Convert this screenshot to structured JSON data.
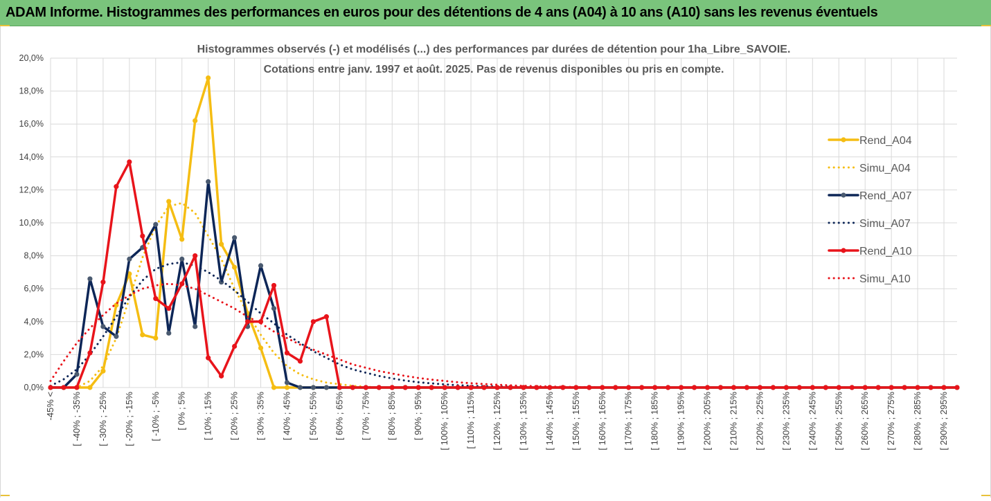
{
  "banner": {
    "title": "ADAM Informe. Histogrammes des performances en euros pour des détentions de 4 ans (A04) à 10 ans (A10) sans les revenus éventuels"
  },
  "chart_data": {
    "type": "line",
    "title_line1": "Histogrammes observés (-) et modélisés (...) des performances par durées de détention pour 1ha_Libre_SAVOIE.",
    "title_line2": "Cotations entre janv. 1997 et août. 2025. Pas de revenus disponibles ou pris en compte.",
    "xlabel": "",
    "ylabel": "",
    "ylim": [
      0,
      20
    ],
    "y_ticks": [
      "0,0%",
      "2,0%",
      "4,0%",
      "6,0%",
      "8,0%",
      "10,0%",
      "12,0%",
      "14,0%",
      "16,0%",
      "18,0%",
      "20,0%"
    ],
    "grid": true,
    "legend_position": "right",
    "x_labels_visible": [
      "-45% <",
      "[ -40% ; -35%",
      "[ -30% ; -25%",
      "[ -20% ; -15%",
      "[ -10% ; -5%",
      "[ 0% ; 5%",
      "[ 10% ; 15%",
      "[ 20% ; 25%",
      "[ 30% ; 35%",
      "[ 40% ; 45%",
      "[ 50% ; 55%",
      "[ 60% ; 65%",
      "[ 70% ; 75%",
      "[ 80% ; 85%",
      "[ 90% ; 95%",
      "[ 100% ; 105%",
      "[ 110% ; 115%",
      "[ 120% ; 125%",
      "[ 130% ; 135%",
      "[ 140% ; 145%",
      "[ 150% ; 155%",
      "[ 160% ; 165%",
      "[ 170% ; 175%",
      "[ 180% ; 185%",
      "[ 190% ; 195%",
      "[ 200% ; 205%",
      "[ 210% ; 215%",
      "[ 220% ; 225%",
      "[ 230% ; 235%",
      "[ 240% ; 245%",
      "[ 250% ; 255%",
      "[ 260% ; 265%",
      "[ 270% ; 275%",
      "[ 280% ; 285%",
      "[ 290% ; 295%"
    ],
    "x_label_step": 2,
    "bin_count": 70,
    "series": [
      {
        "name": "Rend_A04",
        "color": "#f5bd13",
        "style": "solid",
        "marker": true,
        "values": [
          0,
          0,
          0,
          0,
          1.0,
          5.0,
          6.9,
          3.2,
          3.0,
          11.3,
          9.0,
          16.2,
          18.8,
          8.7,
          7.3,
          4.5,
          2.4,
          0,
          0,
          0,
          0,
          0,
          0,
          0,
          0,
          0,
          0,
          0,
          0,
          0,
          0,
          0,
          0,
          0,
          0,
          0,
          0,
          0,
          0,
          0,
          0,
          0,
          0,
          0,
          0,
          0,
          0,
          0,
          0,
          0,
          0,
          0,
          0,
          0,
          0,
          0,
          0,
          0,
          0,
          0,
          0,
          0,
          0,
          0,
          0,
          0,
          0,
          0,
          0,
          0
        ]
      },
      {
        "name": "Simu_A04",
        "color": "#f5bd13",
        "style": "dotted",
        "marker": false,
        "values": [
          0,
          0,
          0,
          0.4,
          1.3,
          3.0,
          5.4,
          7.9,
          9.8,
          11.0,
          11.2,
          10.6,
          9.2,
          7.8,
          6.0,
          4.5,
          3.2,
          2.1,
          1.3,
          0.8,
          0.5,
          0.3,
          0.2,
          0.1,
          0.05,
          0,
          0,
          0,
          0,
          0,
          0,
          0,
          0,
          0,
          0,
          0,
          0,
          0,
          0,
          0,
          0,
          0,
          0,
          0,
          0,
          0,
          0,
          0,
          0,
          0,
          0,
          0,
          0,
          0,
          0,
          0,
          0,
          0,
          0,
          0,
          0,
          0,
          0,
          0,
          0,
          0,
          0,
          0,
          0,
          0
        ]
      },
      {
        "name": "Rend_A07",
        "color": "#0d2657",
        "style": "solid",
        "marker": true,
        "values": [
          0,
          0,
          0.8,
          6.6,
          3.7,
          3.1,
          7.8,
          8.5,
          9.9,
          3.3,
          7.8,
          3.7,
          12.5,
          6.4,
          9.1,
          3.7,
          7.4,
          4.8,
          0.3,
          0,
          0,
          0,
          0,
          0,
          0,
          0,
          0,
          0,
          0,
          0,
          0,
          0,
          0,
          0,
          0,
          0,
          0,
          0,
          0,
          0,
          0,
          0,
          0,
          0,
          0,
          0,
          0,
          0,
          0,
          0,
          0,
          0,
          0,
          0,
          0,
          0,
          0,
          0,
          0,
          0,
          0,
          0,
          0,
          0,
          0,
          0,
          0,
          0,
          0,
          0
        ]
      },
      {
        "name": "Simu_A07",
        "color": "#0d2657",
        "style": "dotted",
        "marker": false,
        "values": [
          0.1,
          0.5,
          1.1,
          2.0,
          3.1,
          4.3,
          5.5,
          6.5,
          7.2,
          7.5,
          7.6,
          7.4,
          7.0,
          6.5,
          5.9,
          5.2,
          4.5,
          3.9,
          3.2,
          2.7,
          2.2,
          1.8,
          1.4,
          1.1,
          0.9,
          0.7,
          0.55,
          0.42,
          0.32,
          0.25,
          0.19,
          0.14,
          0.1,
          0.08,
          0.06,
          0.04,
          0.03,
          0.02,
          0.01,
          0,
          0,
          0,
          0,
          0,
          0,
          0,
          0,
          0,
          0,
          0,
          0,
          0,
          0,
          0,
          0,
          0,
          0,
          0,
          0,
          0,
          0,
          0,
          0,
          0,
          0,
          0,
          0,
          0,
          0,
          0
        ]
      },
      {
        "name": "Rend_A10",
        "color": "#e8141b",
        "style": "solid",
        "marker": true,
        "values": [
          0,
          0,
          0,
          2.1,
          6.4,
          12.2,
          13.7,
          9.2,
          5.4,
          4.8,
          6.3,
          8.0,
          1.8,
          0.7,
          2.5,
          4.0,
          4.0,
          6.2,
          2.1,
          1.6,
          4.0,
          4.3,
          0,
          0,
          0,
          0,
          0,
          0,
          0,
          0,
          0,
          0,
          0,
          0,
          0,
          0,
          0,
          0,
          0,
          0,
          0,
          0,
          0,
          0,
          0,
          0,
          0,
          0,
          0,
          0,
          0,
          0,
          0,
          0,
          0,
          0,
          0,
          0,
          0,
          0,
          0,
          0,
          0,
          0,
          0,
          0,
          0,
          0,
          0,
          0
        ]
      },
      {
        "name": "Simu_A10",
        "color": "#e8141b",
        "style": "dotted",
        "marker": false,
        "values": [
          0.4,
          1.6,
          2.7,
          3.6,
          4.4,
          5.1,
          5.6,
          6.0,
          6.2,
          6.3,
          6.2,
          6.0,
          5.6,
          5.2,
          4.8,
          4.3,
          3.9,
          3.4,
          3.0,
          2.6,
          2.3,
          2.0,
          1.7,
          1.4,
          1.2,
          1.0,
          0.85,
          0.7,
          0.58,
          0.48,
          0.4,
          0.32,
          0.26,
          0.21,
          0.17,
          0.13,
          0.1,
          0.08,
          0.06,
          0.04,
          0.03,
          0.02,
          0.01,
          0,
          0,
          0,
          0,
          0,
          0,
          0,
          0,
          0,
          0,
          0,
          0,
          0,
          0,
          0,
          0,
          0,
          0,
          0,
          0,
          0,
          0,
          0,
          0,
          0,
          0,
          0
        ]
      }
    ]
  }
}
